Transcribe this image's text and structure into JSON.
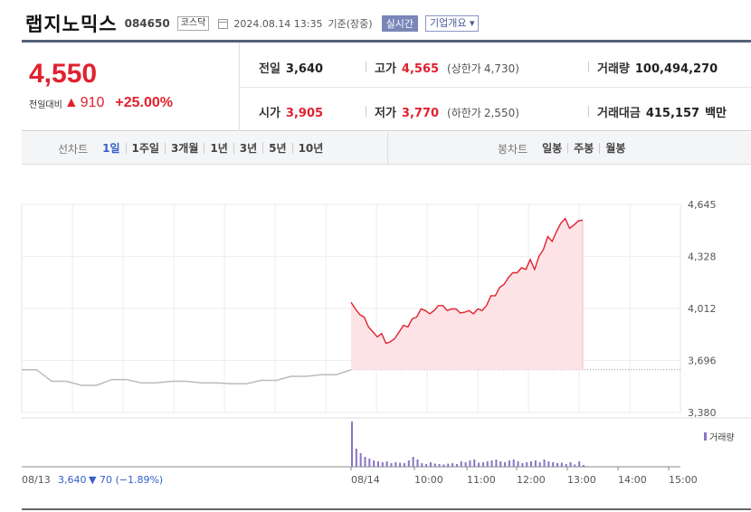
{
  "header": {
    "name": "랩지노믹스",
    "code": "084650",
    "market": "코스닥",
    "timestamp": "2024.08.14 13:35",
    "timestamp_suffix": "기준(장중)",
    "realtime_label": "실시간",
    "company_label": "기업개요"
  },
  "quote": {
    "price": "4,550",
    "change_label": "전일대비",
    "change_arrow": "▲",
    "change_value": "910",
    "change_pct": "+25.00%",
    "prev_close_label": "전일",
    "prev_close": "3,640",
    "high_label": "고가",
    "high": "4,565",
    "upper_limit_label": "(상한가",
    "upper_limit": "4,730)",
    "volume_label": "거래량",
    "volume": "100,494,270",
    "open_label": "시가",
    "open": "3,905",
    "low_label": "저가",
    "low": "3,770",
    "lower_limit_label": "(하한가",
    "lower_limit": "2,550)",
    "amount_label": "거래대금",
    "amount": "415,157",
    "amount_unit": "백만"
  },
  "tabs": {
    "line_label": "선차트",
    "line_tabs": [
      "1일",
      "1주일",
      "3개월",
      "1년",
      "3년",
      "5년",
      "10년"
    ],
    "active": "1일",
    "candle_label": "봉차트",
    "candle_tabs": [
      "일봉",
      "주봉",
      "월봉"
    ]
  },
  "chart_data": {
    "type": "line",
    "y_ticks": [
      "4,645",
      "4,328",
      "4,012",
      "3,696",
      "3,380"
    ],
    "ylim": [
      3380,
      4645
    ],
    "x_ticks": [
      "08/14",
      "10:00",
      "11:00",
      "12:00",
      "13:00",
      "14:00",
      "15:00"
    ],
    "prev_day_label": "08/13",
    "prev_day_close": "3,640",
    "prev_day_change": "▼ 70 (−1.89%)",
    "volume_legend": "거래량",
    "grid": true,
    "colors": {
      "line": "#e0212f",
      "fill": "#fde3e5",
      "prev_line": "#bbbbbb",
      "volume": "#8a74c4",
      "tick_text": "#555555"
    },
    "prev_day_series": [
      3640,
      3640,
      3570,
      3570,
      3545,
      3545,
      3580,
      3580,
      3560,
      3560,
      3570,
      3570,
      3560,
      3560,
      3555,
      3555,
      3575,
      3575,
      3600,
      3600,
      3610,
      3610,
      3640
    ],
    "today_series": [
      4050,
      4010,
      3975,
      3960,
      3900,
      3870,
      3840,
      3860,
      3800,
      3810,
      3830,
      3870,
      3910,
      3900,
      3950,
      3960,
      4010,
      4000,
      3980,
      4000,
      4030,
      4030,
      4000,
      4010,
      4010,
      3985,
      3990,
      4000,
      3980,
      4010,
      4000,
      4030,
      4090,
      4090,
      4140,
      4160,
      4200,
      4230,
      4230,
      4260,
      4250,
      4310,
      4250,
      4330,
      4370,
      4450,
      4420,
      4480,
      4530,
      4560,
      4500,
      4520,
      4545,
      4550
    ],
    "today_volume_pct": [
      100,
      40,
      30,
      22,
      18,
      14,
      12,
      10,
      12,
      8,
      10,
      9,
      8,
      14,
      22,
      16,
      8,
      6,
      10,
      7,
      6,
      5,
      7,
      8,
      6,
      12,
      10,
      14,
      16,
      9,
      10,
      12,
      14,
      16,
      12,
      10,
      14,
      16,
      12,
      8,
      10,
      12,
      14,
      10,
      16,
      12,
      10,
      8,
      9,
      6,
      10,
      5,
      12,
      4
    ]
  }
}
